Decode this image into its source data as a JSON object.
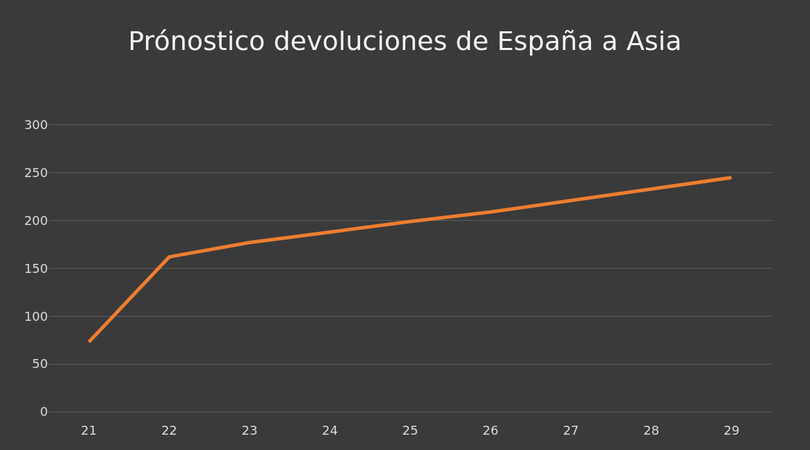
{
  "chart_data": {
    "type": "line",
    "title": "Prónostico devoluciones de España a Asia",
    "categories": [
      "21",
      "22",
      "23",
      "24",
      "25",
      "26",
      "27",
      "28",
      "29"
    ],
    "series": [
      {
        "color": "#ed7d31",
        "values": [
          73,
          162,
          177,
          188,
          199,
          209,
          221,
          233,
          245
        ]
      }
    ],
    "ylim": [
      0,
      300
    ],
    "yticks": [
      0,
      50,
      100,
      150,
      200,
      250,
      300
    ],
    "grid": "y",
    "marker": "none",
    "line_style": "solid"
  }
}
